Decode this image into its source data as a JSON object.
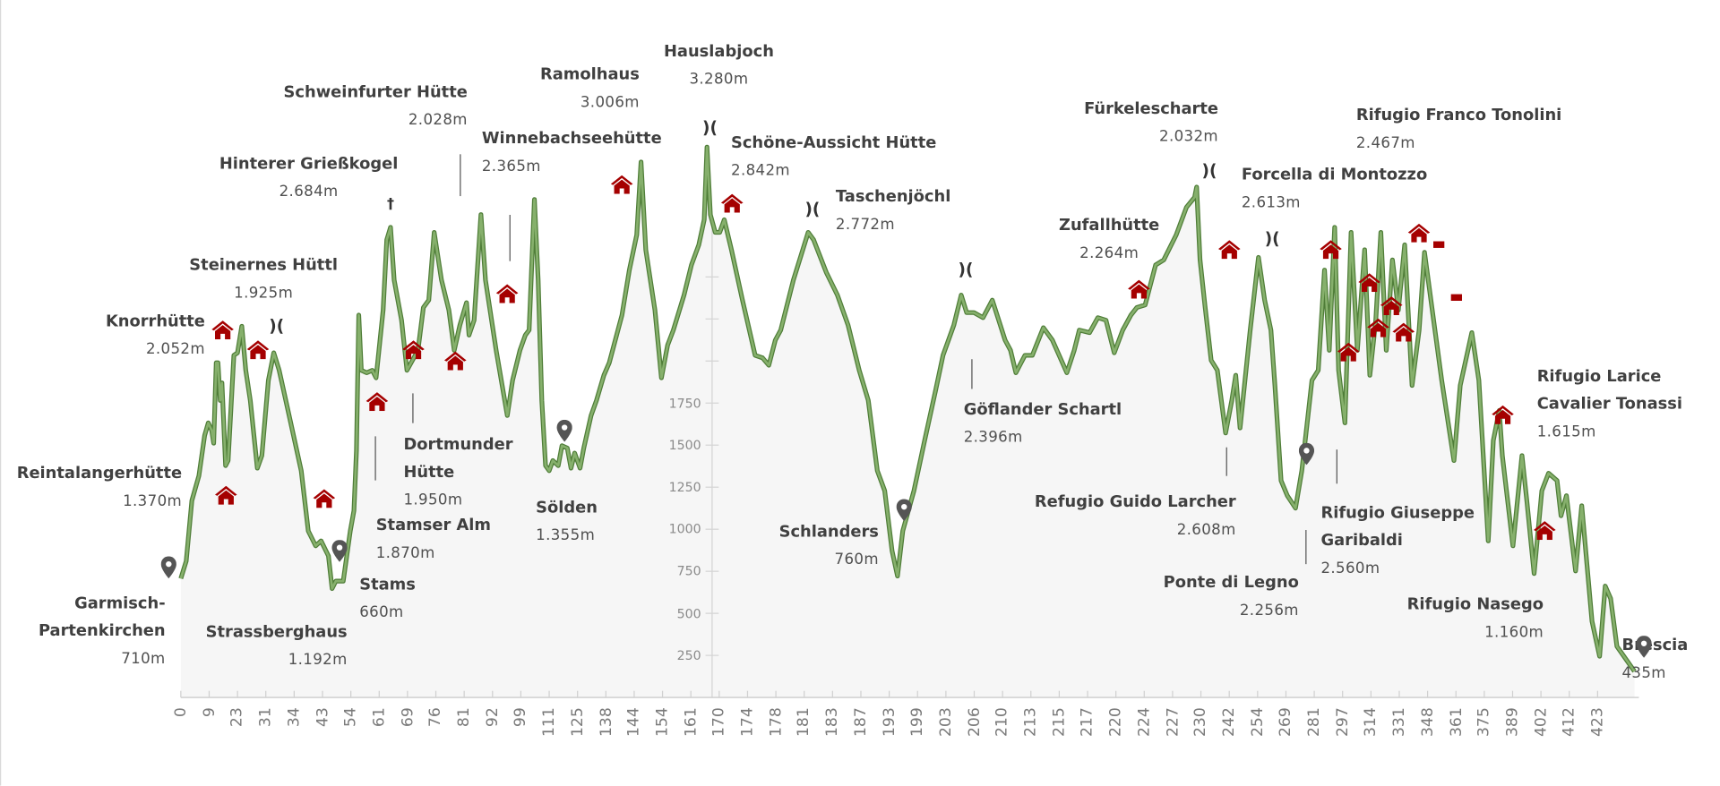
{
  "chart_data": {
    "type": "area",
    "title": "",
    "xlabel": "",
    "ylabel": "",
    "x_unit": "km (category axis, index positions)",
    "x_labels": [
      "0",
      "9",
      "23",
      "31",
      "34",
      "43",
      "54",
      "61",
      "69",
      "76",
      "81",
      "92",
      "99",
      "111",
      "125",
      "138",
      "144",
      "154",
      "161",
      "170",
      "174",
      "178",
      "181",
      "183",
      "187",
      "193",
      "199",
      "203",
      "206",
      "210",
      "213",
      "215",
      "217",
      "220",
      "224",
      "227",
      "230",
      "242",
      "254",
      "269",
      "281",
      "297",
      "314",
      "331",
      "348",
      "361",
      "375",
      "389",
      "402",
      "412",
      "423"
    ],
    "y_ticks": [
      250,
      500,
      750,
      1000,
      1250,
      1500,
      1750
    ],
    "ylim": [
      0,
      3300
    ],
    "grid": false,
    "series_color": "#6b9a4f",
    "profile": [
      [
        0,
        707
      ],
      [
        0.19,
        811
      ],
      [
        0.39,
        1170
      ],
      [
        0.64,
        1318
      ],
      [
        0.84,
        1557
      ],
      [
        0.97,
        1632
      ],
      [
        1.09,
        1587
      ],
      [
        1.16,
        1512
      ],
      [
        1.25,
        1990
      ],
      [
        1.31,
        1990
      ],
      [
        1.39,
        1766
      ],
      [
        1.45,
        1870
      ],
      [
        1.58,
        1378
      ],
      [
        1.67,
        1408
      ],
      [
        1.87,
        2034
      ],
      [
        2.0,
        2049
      ],
      [
        2.15,
        2207
      ],
      [
        2.29,
        1945
      ],
      [
        2.45,
        1766
      ],
      [
        2.7,
        1363
      ],
      [
        2.86,
        1438
      ],
      [
        3.09,
        1885
      ],
      [
        3.28,
        2049
      ],
      [
        3.47,
        1945
      ],
      [
        3.86,
        1647
      ],
      [
        4.25,
        1348
      ],
      [
        4.5,
        990
      ],
      [
        4.76,
        901
      ],
      [
        4.95,
        931
      ],
      [
        5.21,
        841
      ],
      [
        5.34,
        647
      ],
      [
        5.47,
        692
      ],
      [
        5.73,
        692
      ],
      [
        5.98,
        990
      ],
      [
        6.11,
        1110
      ],
      [
        6.2,
        1468
      ],
      [
        6.28,
        2273
      ],
      [
        6.37,
        1945
      ],
      [
        6.56,
        1930
      ],
      [
        6.76,
        1945
      ],
      [
        6.89,
        1900
      ],
      [
        7.14,
        2303
      ],
      [
        7.27,
        2721
      ],
      [
        7.4,
        2795
      ],
      [
        7.53,
        2482
      ],
      [
        7.79,
        2243
      ],
      [
        7.98,
        1945
      ],
      [
        8.37,
        2064
      ],
      [
        8.56,
        2318
      ],
      [
        8.75,
        2362
      ],
      [
        8.94,
        2765
      ],
      [
        9.2,
        2482
      ],
      [
        9.46,
        2303
      ],
      [
        9.65,
        2064
      ],
      [
        9.85,
        2213
      ],
      [
        10.08,
        2347
      ],
      [
        10.17,
        2154
      ],
      [
        10.35,
        2243
      ],
      [
        10.59,
        2870
      ],
      [
        10.75,
        2482
      ],
      [
        11.13,
        2064
      ],
      [
        11.52,
        1676
      ],
      [
        11.71,
        1885
      ],
      [
        11.97,
        2064
      ],
      [
        12.16,
        2154
      ],
      [
        12.29,
        2184
      ],
      [
        12.48,
        2960
      ],
      [
        12.61,
        2482
      ],
      [
        12.74,
        1766
      ],
      [
        12.87,
        1378
      ],
      [
        13.0,
        1348
      ],
      [
        13.13,
        1408
      ],
      [
        13.32,
        1378
      ],
      [
        13.45,
        1497
      ],
      [
        13.64,
        1483
      ],
      [
        13.77,
        1363
      ],
      [
        13.9,
        1453
      ],
      [
        14.09,
        1363
      ],
      [
        14.22,
        1483
      ],
      [
        14.48,
        1676
      ],
      [
        14.67,
        1766
      ],
      [
        14.93,
        1915
      ],
      [
        15.12,
        1990
      ],
      [
        15.57,
        2273
      ],
      [
        15.83,
        2541
      ],
      [
        16.09,
        2750
      ],
      [
        16.24,
        3183
      ],
      [
        16.41,
        2661
      ],
      [
        16.73,
        2303
      ],
      [
        16.96,
        1900
      ],
      [
        17.18,
        2094
      ],
      [
        17.38,
        2184
      ],
      [
        17.76,
        2392
      ],
      [
        18.02,
        2571
      ],
      [
        18.28,
        2691
      ],
      [
        18.47,
        2840
      ],
      [
        18.57,
        3272
      ],
      [
        18.69,
        2870
      ],
      [
        18.86,
        2765
      ],
      [
        19.02,
        2765
      ],
      [
        19.18,
        2840
      ],
      [
        19.43,
        2661
      ],
      [
        19.82,
        2362
      ],
      [
        20.27,
        2034
      ],
      [
        20.53,
        2019
      ],
      [
        20.75,
        1975
      ],
      [
        20.98,
        2124
      ],
      [
        21.17,
        2184
      ],
      [
        21.62,
        2482
      ],
      [
        22.14,
        2765
      ],
      [
        22.33,
        2721
      ],
      [
        22.78,
        2527
      ],
      [
        23.17,
        2392
      ],
      [
        23.55,
        2213
      ],
      [
        23.94,
        1945
      ],
      [
        24.26,
        1766
      ],
      [
        24.58,
        1348
      ],
      [
        24.84,
        1229
      ],
      [
        25.1,
        871
      ],
      [
        25.29,
        722
      ],
      [
        25.48,
        990
      ],
      [
        25.87,
        1229
      ],
      [
        26.25,
        1527
      ],
      [
        26.64,
        1826
      ],
      [
        26.9,
        2034
      ],
      [
        27.28,
        2213
      ],
      [
        27.54,
        2392
      ],
      [
        27.73,
        2288
      ],
      [
        27.99,
        2288
      ],
      [
        28.31,
        2258
      ],
      [
        28.64,
        2362
      ],
      [
        29.09,
        2124
      ],
      [
        29.28,
        2064
      ],
      [
        29.47,
        1930
      ],
      [
        29.79,
        2034
      ],
      [
        30.05,
        2034
      ],
      [
        30.44,
        2198
      ],
      [
        30.76,
        2124
      ],
      [
        31.27,
        1930
      ],
      [
        31.53,
        2064
      ],
      [
        31.71,
        2184
      ],
      [
        32.07,
        2169
      ],
      [
        32.36,
        2258
      ],
      [
        32.65,
        2243
      ],
      [
        32.94,
        2049
      ],
      [
        33.24,
        2184
      ],
      [
        33.53,
        2273
      ],
      [
        33.74,
        2318
      ],
      [
        34.03,
        2333
      ],
      [
        34.4,
        2571
      ],
      [
        34.69,
        2601
      ],
      [
        35.13,
        2750
      ],
      [
        35.49,
        2914
      ],
      [
        35.78,
        2974
      ],
      [
        35.85,
        3034
      ],
      [
        35.97,
        2601
      ],
      [
        36.14,
        2333
      ],
      [
        36.36,
        2004
      ],
      [
        36.58,
        1945
      ],
      [
        36.87,
        1572
      ],
      [
        37.09,
        1766
      ],
      [
        37.23,
        1915
      ],
      [
        37.38,
        1602
      ],
      [
        37.74,
        2184
      ],
      [
        38.03,
        2616
      ],
      [
        38.25,
        2362
      ],
      [
        38.47,
        2184
      ],
      [
        38.61,
        1855
      ],
      [
        38.83,
        1289
      ],
      [
        39.05,
        1199
      ],
      [
        39.34,
        1125
      ],
      [
        39.56,
        1348
      ],
      [
        39.7,
        1557
      ],
      [
        39.92,
        1885
      ],
      [
        40.14,
        1945
      ],
      [
        40.36,
        2541
      ],
      [
        40.53,
        2064
      ],
      [
        40.72,
        2795
      ],
      [
        40.86,
        1945
      ],
      [
        41.08,
        1632
      ],
      [
        41.3,
        2765
      ],
      [
        41.52,
        2064
      ],
      [
        41.78,
        2661
      ],
      [
        41.96,
        1915
      ],
      [
        42.17,
        2243
      ],
      [
        42.35,
        2765
      ],
      [
        42.54,
        2064
      ],
      [
        42.76,
        2601
      ],
      [
        42.97,
        2303
      ],
      [
        43.19,
        2691
      ],
      [
        43.45,
        1855
      ],
      [
        43.7,
        2184
      ],
      [
        43.89,
        2646
      ],
      [
        44.14,
        2333
      ],
      [
        44.5,
        1885
      ],
      [
        44.93,
        1408
      ],
      [
        45.15,
        1855
      ],
      [
        45.56,
        2169
      ],
      [
        45.81,
        1885
      ],
      [
        46.14,
        931
      ],
      [
        46.32,
        1527
      ],
      [
        46.53,
        1706
      ],
      [
        46.64,
        1438
      ],
      [
        47.01,
        901
      ],
      [
        47.33,
        1438
      ],
      [
        47.5,
        1169
      ],
      [
        47.76,
        737
      ],
      [
        48.03,
        1229
      ],
      [
        48.27,
        1333
      ],
      [
        48.57,
        1289
      ],
      [
        48.71,
        1080
      ],
      [
        48.9,
        1199
      ],
      [
        49.22,
        752
      ],
      [
        49.44,
        1140
      ],
      [
        49.8,
        453
      ],
      [
        50.07,
        245
      ],
      [
        50.27,
        662
      ],
      [
        50.46,
        588
      ],
      [
        50.68,
        304
      ],
      [
        51.3,
        155
      ]
    ]
  },
  "annotations": [
    {
      "name": "Garmisch-\nPartenkirchen",
      "elevation": "710m"
    },
    {
      "name": "Reintalangerhütte",
      "elevation": "1.370m"
    },
    {
      "name": "Knorrhütte",
      "elevation": "2.052m"
    },
    {
      "name": "Steinernes Hüttl",
      "elevation": "1.925m"
    },
    {
      "name": "Strassberghaus",
      "elevation": "1.192m"
    },
    {
      "name": "Hinterer Grießkogel",
      "elevation": "2.684m"
    },
    {
      "name": "Schweinfurter Hütte",
      "elevation": "2.028m"
    },
    {
      "name": "Winnebachseehütte",
      "elevation": "2.365m"
    },
    {
      "name": "Ramolhaus",
      "elevation": "3.006m"
    },
    {
      "name": "Hauslabjoch",
      "elevation": "3.280m"
    },
    {
      "name": "Schöne-Aussicht Hütte",
      "elevation": "2.842m"
    },
    {
      "name": "Taschenjöchl",
      "elevation": "2.772m"
    },
    {
      "name": "Stams",
      "elevation": "660m"
    },
    {
      "name": "Stamser Alm",
      "elevation": "1.870m"
    },
    {
      "name": "Dortmunder\nHütte",
      "elevation": "1.950m"
    },
    {
      "name": "Sölden",
      "elevation": "1.355m"
    },
    {
      "name": "Schlanders",
      "elevation": "760m"
    },
    {
      "name": "Göflander Schartl",
      "elevation": "2.396m"
    },
    {
      "name": "Zufallhütte",
      "elevation": "2.264m"
    },
    {
      "name": "Fürkelescharte",
      "elevation": "2.032m"
    },
    {
      "name": "Refugio Guido Larcher",
      "elevation": "2.608m"
    },
    {
      "name": "Forcella di Montozzo",
      "elevation": "2.613m"
    },
    {
      "name": "Rifugio Franco Tonolini",
      "elevation": "2.467m"
    },
    {
      "name": "Ponte di Legno",
      "elevation": "2.256m"
    },
    {
      "name": "Rifugio Giuseppe\nGaribaldi",
      "elevation": "2.560m"
    },
    {
      "name": "Rifugio Nasego",
      "elevation": "1.160m"
    },
    {
      "name": "Rifugio Larice\nCavalier Tonassi",
      "elevation": "1.615m"
    },
    {
      "name": "Brescia",
      "elevation": "435m"
    }
  ],
  "symbols": {
    "pass": ")(",
    "summit_cross": "†"
  },
  "icons": {
    "hut": "house-icon",
    "town": "map-pin-icon",
    "pass": "pass-icon",
    "summit": "cross-icon"
  },
  "colors": {
    "line": "#6b9a4f",
    "line_edge": "#4f7d38",
    "area": "#f6f6f6",
    "hut": "#a50000",
    "pin": "#555555",
    "text": "#404040"
  }
}
